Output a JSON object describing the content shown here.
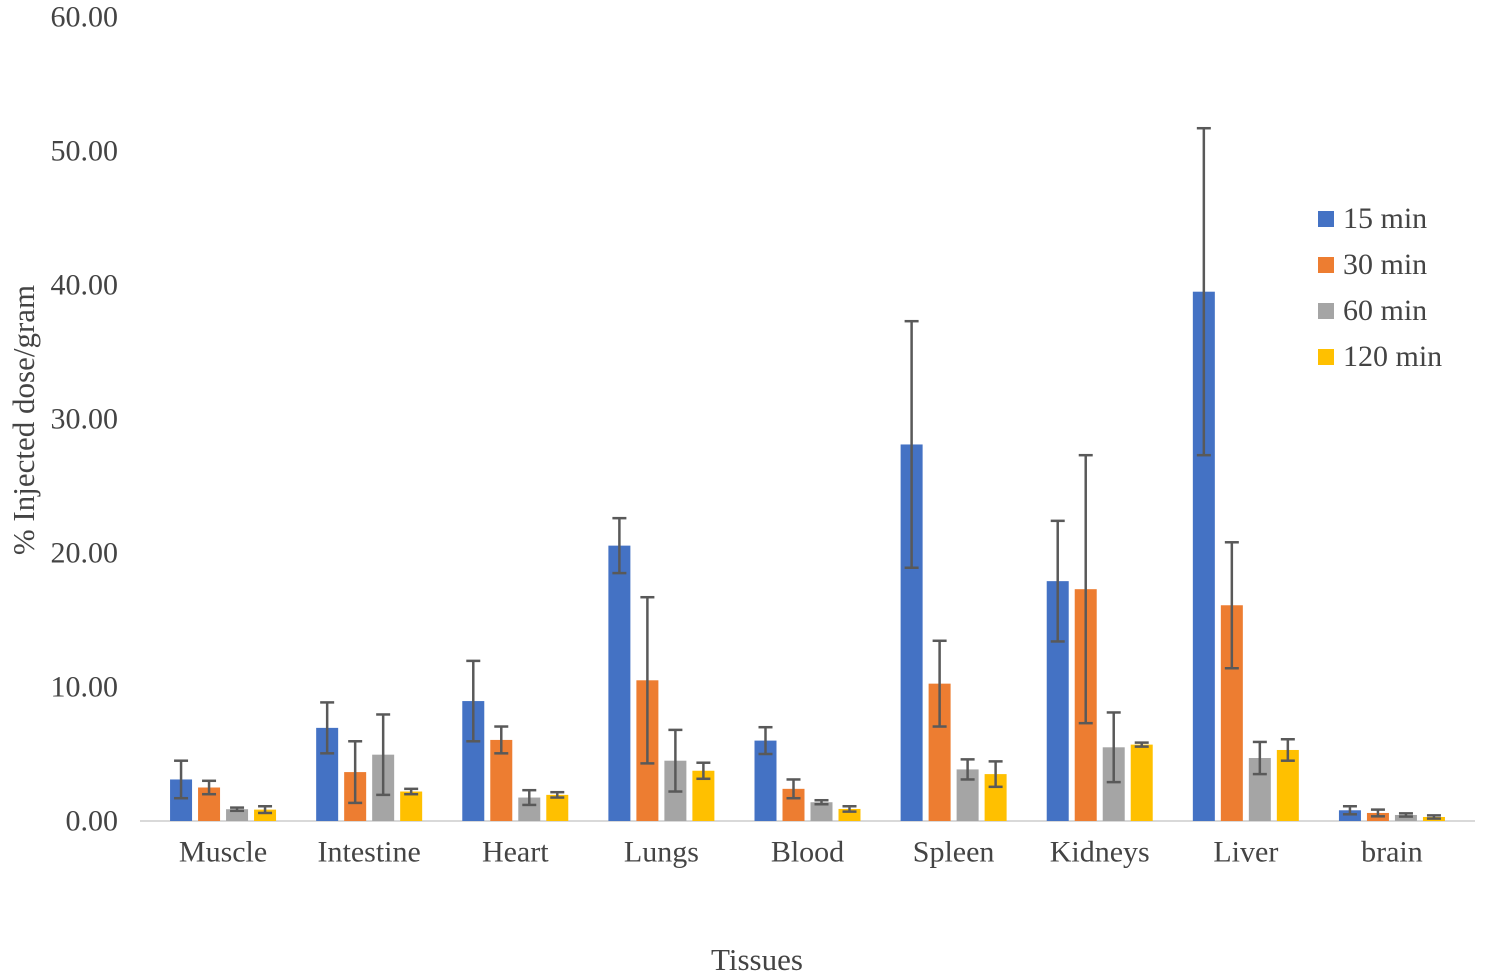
{
  "chart_data": {
    "type": "bar",
    "title": "",
    "xlabel": "Tissues",
    "ylabel": "% Injected dose/gram",
    "ylim": [
      0,
      60
    ],
    "ytick_step": 10,
    "ytick_labels": [
      "0.00",
      "10.00",
      "20.00",
      "30.00",
      "40.00",
      "50.00",
      "60.00"
    ],
    "grid": false,
    "legend_position": "right",
    "categories": [
      "Muscle",
      "Intestine",
      "Heart",
      "Lungs",
      "Blood",
      "Spleen",
      "Kidneys",
      "Liver",
      "brain"
    ],
    "series": [
      {
        "name": "15 min",
        "color": "#4472C4",
        "values": [
          3.1,
          6.95,
          8.95,
          20.55,
          6.0,
          28.1,
          17.9,
          39.5,
          0.8
        ],
        "errors": [
          1.4,
          1.9,
          3.0,
          2.05,
          1.0,
          9.2,
          4.5,
          12.2,
          0.3
        ]
      },
      {
        "name": "30 min",
        "color": "#ED7D31",
        "values": [
          2.5,
          3.65,
          6.05,
          10.5,
          2.4,
          10.25,
          17.3,
          16.1,
          0.6
        ],
        "errors": [
          0.5,
          2.3,
          1.0,
          6.2,
          0.7,
          3.2,
          10.0,
          4.7,
          0.25
        ]
      },
      {
        "name": "60 min",
        "color": "#A5A5A5",
        "values": [
          0.88,
          4.95,
          1.75,
          4.5,
          1.4,
          3.85,
          5.5,
          4.7,
          0.45
        ],
        "errors": [
          0.12,
          3.0,
          0.55,
          2.3,
          0.15,
          0.75,
          2.6,
          1.2,
          0.12
        ]
      },
      {
        "name": "120 min",
        "color": "#FFC000",
        "values": [
          0.85,
          2.2,
          1.95,
          3.75,
          0.9,
          3.5,
          5.7,
          5.3,
          0.3
        ],
        "errors": [
          0.25,
          0.2,
          0.2,
          0.6,
          0.2,
          0.95,
          0.15,
          0.8,
          0.12
        ]
      }
    ],
    "error_bar_color": "#595959",
    "axis_line_color": "#D9D9D9",
    "text_color": "#595959"
  }
}
